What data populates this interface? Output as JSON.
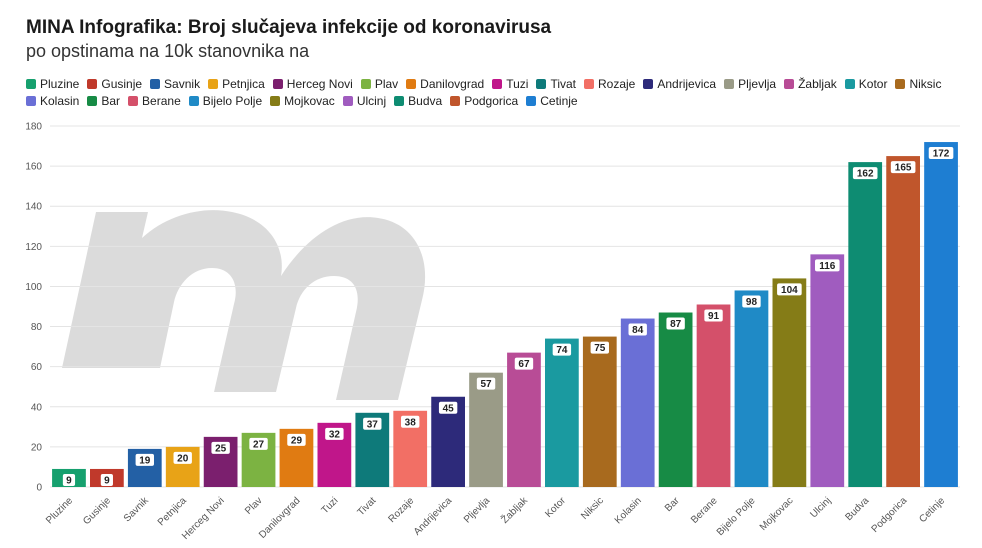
{
  "header": {
    "title": "MINA Infografika: Broj slučajeva infekcije od koronavirusa",
    "subtitle": "po opstinama na 10k stanovnika na"
  },
  "logo": {
    "icon": "mina-m-logo-watermark",
    "color": "#d7d7d7"
  },
  "chart_data": {
    "type": "bar",
    "title": "MINA Infografika: Broj slučajeva infekcije od koronavirusa",
    "subtitle": "po opstinama na 10k stanovnika na",
    "xlabel": "",
    "ylabel": "",
    "ylim": [
      0,
      180
    ],
    "yticks": [
      0,
      20,
      40,
      60,
      80,
      100,
      120,
      140,
      160,
      180
    ],
    "grid": true,
    "legend_placement": "top",
    "categories": [
      "Pluzine",
      "Gusinje",
      "Savnik",
      "Petnjica",
      "Herceg Novi",
      "Plav",
      "Danilovgrad",
      "Tuzi",
      "Tivat",
      "Rozaje",
      "Andrijevica",
      "Pljevlja",
      "Žabljak",
      "Kotor",
      "Niksic",
      "Kolasin",
      "Bar",
      "Berane",
      "Bijelo Polje",
      "Mojkovac",
      "Ulcinj",
      "Budva",
      "Podgorica",
      "Cetinje"
    ],
    "values": [
      9,
      9,
      19,
      20,
      25,
      27,
      29,
      32,
      37,
      38,
      45,
      57,
      67,
      74,
      75,
      84,
      87,
      91,
      98,
      104,
      116,
      162,
      165,
      172
    ],
    "colors": [
      "#16a06e",
      "#c0392b",
      "#2360a5",
      "#e8a317",
      "#7b1f6e",
      "#7cb342",
      "#e07b12",
      "#c0168a",
      "#0e7a7a",
      "#f26f65",
      "#2d2a7a",
      "#9a9b87",
      "#b84c96",
      "#1a9aa0",
      "#a86a1e",
      "#6a6fd6",
      "#178b45",
      "#d4506a",
      "#1f8ac6",
      "#857c17",
      "#a05cbf",
      "#0e8c72",
      "#c0562c",
      "#1e7ed2"
    ]
  }
}
